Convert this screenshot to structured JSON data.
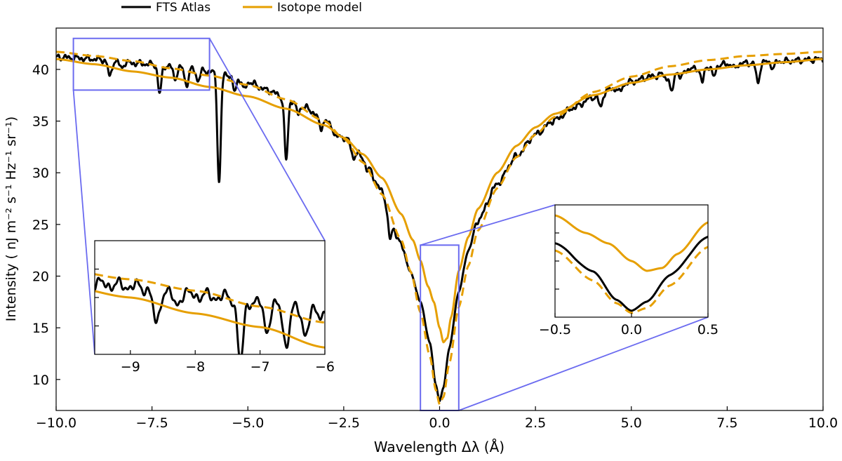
{
  "chart_data": {
    "type": "line",
    "xlabel": "Wavelength Δλ (Å)",
    "ylabel": "Intensity ( nJ m⁻² s⁻¹ Hz⁻¹ sr⁻¹)",
    "xlim": [
      -10,
      10
    ],
    "ylim": [
      7,
      44
    ],
    "grid": false,
    "legend_position": "top-left, above axes",
    "x_ticks": [
      -10,
      -7.5,
      -5,
      -2.5,
      0,
      2.5,
      5,
      7.5,
      10
    ],
    "x_tick_labels": [
      "−10.0",
      "−7.5",
      "−5.0",
      "−2.5",
      "0.0",
      "2.5",
      "5.0",
      "7.5",
      "10.0"
    ],
    "y_ticks": [
      10,
      15,
      20,
      25,
      30,
      35,
      40
    ],
    "y_tick_labels": [
      "10",
      "15",
      "20",
      "25",
      "30",
      "35",
      "40"
    ],
    "legend": [
      {
        "label": "FTS Atlas",
        "color": "#000000"
      },
      {
        "label": "Isotope model",
        "color": "#e69f00"
      }
    ],
    "series": [
      {
        "name": "FTS Atlas",
        "color": "#000000",
        "style": "solid",
        "x": [
          -10,
          -9.5,
          -9,
          -8.5,
          -8,
          -7.5,
          -7,
          -6.5,
          -6,
          -5.5,
          -5,
          -4.5,
          -4,
          -3.5,
          -3,
          -2.5,
          -2,
          -1.5,
          -1.25,
          -1,
          -0.75,
          -0.5,
          -0.25,
          -0.1,
          0,
          0.1,
          0.25,
          0.5,
          0.75,
          1,
          1.5,
          2,
          2.5,
          3,
          3.5,
          4,
          4.5,
          5,
          5.5,
          6,
          6.5,
          7,
          7.5,
          8,
          8.5,
          9,
          9.5,
          10
        ],
        "y": [
          41.2,
          41.1,
          41.0,
          40.8,
          40.6,
          40.5,
          40.3,
          40.0,
          39.8,
          39.5,
          38.8,
          38.0,
          37.2,
          36.3,
          35.0,
          33.4,
          31.5,
          28.2,
          25.0,
          23.0,
          20.3,
          17.5,
          13.5,
          9.5,
          7.9,
          9.2,
          13.0,
          18.5,
          22.5,
          25.4,
          28.9,
          31.6,
          33.7,
          35.1,
          36.3,
          37.3,
          38.1,
          38.8,
          39.3,
          39.7,
          40.0,
          40.3,
          40.5,
          40.6,
          40.7,
          40.8,
          40.9,
          41.0
        ],
        "absorption_lines": [
          {
            "center": -8.6,
            "depth": 1.6
          },
          {
            "center": -8.3,
            "depth": 0.6
          },
          {
            "center": -7.3,
            "depth": 2.8
          },
          {
            "center": -6.9,
            "depth": 1.2
          },
          {
            "center": -6.6,
            "depth": 1.6
          },
          {
            "center": -6.3,
            "depth": 1.0
          },
          {
            "center": -5.75,
            "depth": 10.5
          },
          {
            "center": -5.35,
            "depth": 1.5
          },
          {
            "center": -5.1,
            "depth": 0.9
          },
          {
            "center": -4.0,
            "depth": 6.0
          },
          {
            "center": -3.7,
            "depth": 0.9
          },
          {
            "center": -3.1,
            "depth": 0.8
          },
          {
            "center": -2.7,
            "depth": 0.6
          },
          {
            "center": -2.25,
            "depth": 1.0
          },
          {
            "center": -1.9,
            "depth": 0.8
          },
          {
            "center": -1.3,
            "depth": 1.8
          },
          {
            "center": 4.2,
            "depth": 1.3
          },
          {
            "center": 4.7,
            "depth": 0.6
          },
          {
            "center": 5.9,
            "depth": 0.5
          },
          {
            "center": 6.05,
            "depth": 2.1
          },
          {
            "center": 6.3,
            "depth": 0.8
          },
          {
            "center": 6.85,
            "depth": 1.5
          },
          {
            "center": 7.15,
            "depth": 1.1
          },
          {
            "center": 7.7,
            "depth": 0.5
          },
          {
            "center": 8.3,
            "depth": 2.0
          },
          {
            "center": 8.7,
            "depth": 0.6
          }
        ]
      },
      {
        "name": "Isotope model",
        "color": "#e69f00",
        "style": "solid",
        "x": [
          -10,
          -9,
          -8,
          -7,
          -6,
          -5,
          -4,
          -3,
          -2.5,
          -2,
          -1.5,
          -1,
          -0.7,
          -0.5,
          -0.3,
          -0.15,
          0,
          0.1,
          0.2,
          0.3,
          0.5,
          0.75,
          1,
          1.5,
          2,
          2.5,
          3,
          4,
          5,
          6,
          7,
          8,
          9,
          10
        ],
        "y": [
          41.0,
          40.5,
          39.8,
          39.2,
          38.3,
          37.4,
          36.2,
          34.6,
          33.4,
          31.8,
          29.5,
          26.0,
          23.5,
          21.5,
          19.0,
          17.5,
          15.0,
          13.6,
          14.0,
          16.0,
          20.5,
          23.8,
          26.5,
          30.0,
          32.6,
          34.4,
          35.7,
          37.5,
          38.7,
          39.5,
          40.0,
          40.4,
          40.7,
          41.0
        ]
      },
      {
        "name": "Isotope model (dashed)",
        "color": "#e69f00",
        "style": "dashed",
        "x": [
          -10,
          -9,
          -8,
          -7,
          -6,
          -5,
          -4,
          -3,
          -2.5,
          -2,
          -1.5,
          -1,
          -0.75,
          -0.5,
          -0.25,
          -0.1,
          0,
          0.1,
          0.25,
          0.5,
          0.75,
          1,
          1.5,
          2,
          2.5,
          3,
          4,
          5,
          6,
          7,
          8,
          9,
          10
        ],
        "y": [
          41.7,
          41.3,
          40.8,
          40.1,
          39.4,
          38.5,
          37.1,
          35.0,
          33.3,
          31.0,
          27.9,
          23.5,
          20.4,
          16.5,
          12.2,
          9.0,
          7.6,
          8.3,
          11.5,
          17.0,
          21.0,
          24.4,
          28.5,
          31.5,
          33.7,
          35.4,
          37.8,
          39.3,
          40.3,
          40.9,
          41.3,
          41.5,
          41.7
        ]
      }
    ],
    "insets": [
      {
        "name": "left-inset",
        "xlim": [
          -9.55,
          -6.0
        ],
        "ylim": [
          38.0,
          43.0
        ],
        "x_ticks": [
          -9,
          -8,
          -7,
          -6
        ],
        "x_tick_labels": [
          "−9",
          "−8",
          "−7",
          "−6"
        ]
      },
      {
        "name": "right-inset",
        "xlim": [
          -0.5,
          0.5
        ],
        "ylim": [
          7.0,
          23.0
        ],
        "x_ticks": [
          -0.5,
          0.0,
          0.5
        ],
        "x_tick_labels": [
          "−0.5",
          "0.0",
          "0.5"
        ]
      }
    ]
  }
}
